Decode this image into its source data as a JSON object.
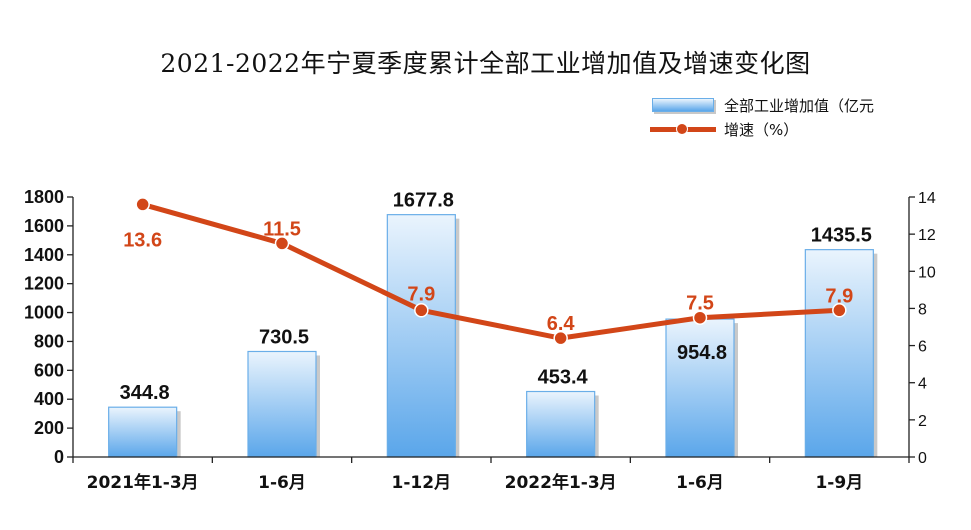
{
  "chart_data": {
    "type": "bar",
    "title": "2021-2022年宁夏季度累计全部工业增加值及增速变化图",
    "categories": [
      "2021年1-3月",
      "1-6月",
      "1-12月",
      "2022年1-3月",
      "1-6月",
      "1-9月"
    ],
    "series": [
      {
        "name": "全部工业增加值（亿元",
        "type": "bar",
        "axis": "left",
        "values": [
          344.8,
          730.5,
          1677.8,
          453.4,
          954.8,
          1435.5
        ],
        "labels": [
          "344.8",
          "730.5",
          "1677.8",
          "453.4",
          "954.8",
          "1435.5"
        ]
      },
      {
        "name": "增速（%）",
        "type": "line",
        "axis": "right",
        "values": [
          13.6,
          11.5,
          7.9,
          6.4,
          7.5,
          7.9
        ],
        "labels": [
          "13.6",
          "11.5",
          "7.9",
          "6.4",
          "7.5",
          "7.9"
        ]
      }
    ],
    "y_left": {
      "ylim": [
        0,
        1800
      ],
      "ticks": [
        "0",
        "200",
        "400",
        "600",
        "800",
        "1000",
        "1200",
        "1400",
        "1600",
        "1800"
      ]
    },
    "y_right": {
      "ylim": [
        0,
        14
      ],
      "ticks": [
        "0",
        "2",
        "4",
        "6",
        "8",
        "10",
        "12",
        "14"
      ]
    },
    "grid": false,
    "legend_position": "top-right",
    "colors": {
      "bar_top": "#eaf4fd",
      "bar_bottom": "#5aa6ea",
      "bar_border": "#6aaee8",
      "line": "#d24618"
    }
  }
}
